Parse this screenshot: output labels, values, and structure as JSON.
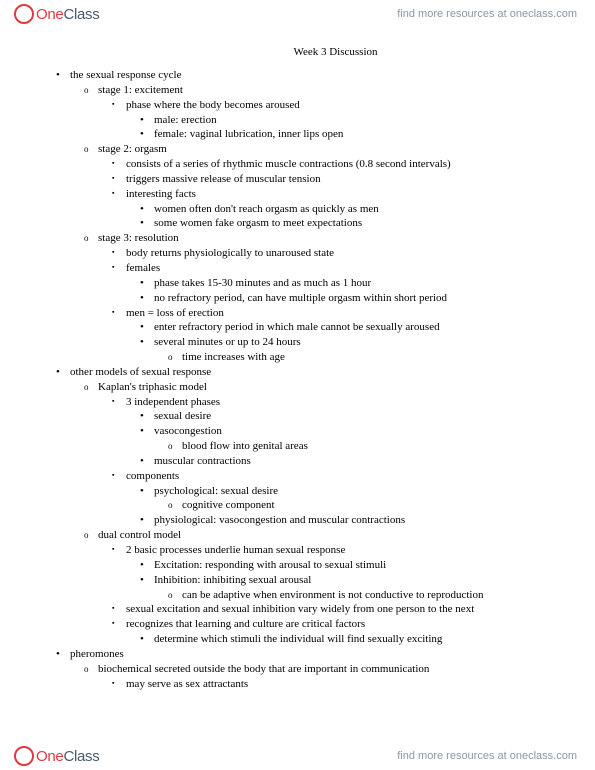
{
  "brand": {
    "one": "One",
    "class": "Class"
  },
  "promo": "find more resources at oneclass.com",
  "title": "Week 3 Discussion",
  "b0": "the sexual response cycle",
  "b0_0": "stage 1: excitement",
  "b0_0_0": "phase where the body becomes aroused",
  "b0_0_0_0": "male: erection",
  "b0_0_0_1": "female: vaginal lubrication, inner lips open",
  "b0_1": "stage 2: orgasm",
  "b0_1_0": "consists of a series of rhythmic muscle contractions (0.8 second intervals)",
  "b0_1_1": "triggers massive release of muscular tension",
  "b0_1_2": "interesting facts",
  "b0_1_2_0": "women often don't reach orgasm as quickly as men",
  "b0_1_2_1": "some women fake orgasm to meet expectations",
  "b0_2": "stage 3: resolution",
  "b0_2_0": "body returns physiologically to unaroused state",
  "b0_2_1": "females",
  "b0_2_1_0": "phase takes 15-30 minutes and as much as 1 hour",
  "b0_2_1_1": "no refractory period, can have multiple orgasm within short period",
  "b0_2_2": "men = loss of erection",
  "b0_2_2_0": "enter refractory period in which male cannot be sexually aroused",
  "b0_2_2_1": "several minutes or up to 24 hours",
  "b0_2_2_1_0": "time increases with age",
  "b1": "other models of sexual response",
  "b1_0": "Kaplan's triphasic model",
  "b1_0_0": "3 independent phases",
  "b1_0_0_0": "sexual desire",
  "b1_0_0_1": "vasocongestion",
  "b1_0_0_1_0": "blood flow into genital areas",
  "b1_0_0_2": "muscular contractions",
  "b1_0_1": "components",
  "b1_0_1_0": "psychological: sexual desire",
  "b1_0_1_0_0": "cognitive component",
  "b1_0_1_1": "physiological: vasocongestion and muscular contractions",
  "b1_1": "dual control model",
  "b1_1_0": "2 basic processes underlie human sexual response",
  "b1_1_0_0": "Excitation: responding with arousal to sexual stimuli",
  "b1_1_0_1": "Inhibition: inhibiting sexual arousal",
  "b1_1_0_1_0": "can be adaptive when environment is not conductive to reproduction",
  "b1_1_1": "sexual excitation and sexual inhibition vary widely from one person to the next",
  "b1_1_2": "recognizes that learning and culture are critical factors",
  "b1_1_2_0": "determine which stimuli the individual will find sexually exciting",
  "b2": "pheromones",
  "b2_0": "biochemical secreted outside the body that are important in communication",
  "b2_0_0": "may serve as sex attractants"
}
